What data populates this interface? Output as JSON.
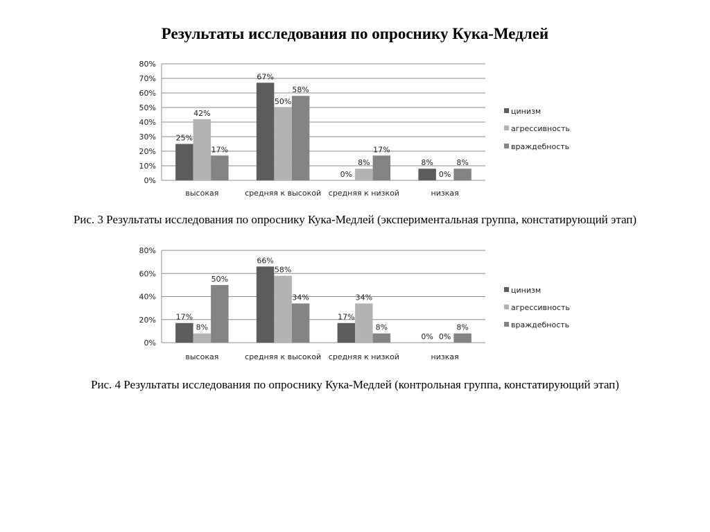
{
  "page_title": "Результаты исследования по опроснику Кука-Медлей",
  "colors": {
    "цинизм": "#5c5c5c",
    "агрессивность": "#b3b3b3",
    "враждебность": "#848484"
  },
  "chart_data": [
    {
      "type": "bar",
      "caption": "Рис. 3 Результаты исследования по опроснику Кука-Медлей (экспериментальная группа, констатирующий этап)",
      "categories": [
        "высокая",
        "средняя к высокой",
        "средняя к низкой",
        "низкая"
      ],
      "series": [
        {
          "name": "цинизм",
          "values": [
            25,
            67,
            0,
            8
          ]
        },
        {
          "name": "агрессивность",
          "values": [
            42,
            50,
            8,
            0
          ]
        },
        {
          "name": "враждебность",
          "values": [
            17,
            58,
            17,
            8
          ]
        }
      ],
      "ylim": [
        0,
        80
      ],
      "yticks": [
        "0%",
        "10%",
        "20%",
        "30%",
        "40%",
        "50%",
        "60%",
        "70%",
        "80%"
      ],
      "grid": true,
      "legend": "right",
      "data_labels": true
    },
    {
      "type": "bar",
      "caption": "Рис. 4 Результаты исследования по опроснику Кука-Медлей (контрольная группа, констатирующий этап)",
      "categories": [
        "высокая",
        "средняя к высокой",
        "средняя к низкой",
        "низкая"
      ],
      "series": [
        {
          "name": "цинизм",
          "values": [
            17,
            66,
            17,
            0
          ]
        },
        {
          "name": "агрессивность",
          "values": [
            8,
            58,
            34,
            0
          ]
        },
        {
          "name": "враждебность",
          "values": [
            50,
            34,
            8,
            8
          ]
        }
      ],
      "ylim": [
        0,
        80
      ],
      "yticks": [
        "0%",
        "20%",
        "40%",
        "60%",
        "80%"
      ],
      "grid": true,
      "legend": "right",
      "data_labels": true
    }
  ]
}
